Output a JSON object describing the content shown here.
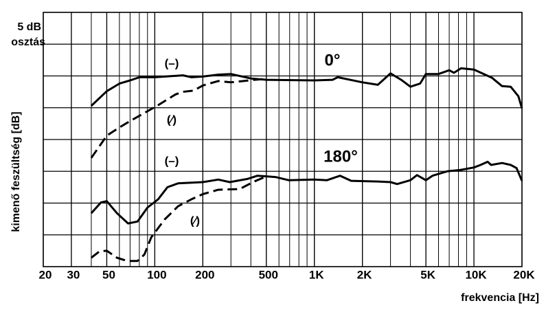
{
  "chart_data": {
    "type": "line",
    "x_label": "frekvencia [Hz]",
    "y_label": "kimenő feszültség [dB]",
    "y_scale_note": [
      "5 dB",
      "osztás"
    ],
    "xscale": "log",
    "xlim": [
      20,
      20000
    ],
    "xticks": [
      20,
      30,
      50,
      100,
      200,
      500,
      {
        "value": 1000,
        "label": "1K"
      },
      {
        "value": 2000,
        "label": "2K"
      },
      {
        "value": 5000,
        "label": "5K"
      },
      {
        "value": 10000,
        "label": "10K"
      },
      {
        "value": 20000,
        "label": "20K"
      }
    ],
    "ylim": [
      0,
      40
    ],
    "yticks": [
      0,
      5,
      10,
      15,
      20,
      25,
      30,
      35,
      40
    ],
    "grid": true,
    "series": [
      {
        "color": "#000000",
        "style": "solid",
        "x": [
          40,
          50,
          60,
          70,
          80,
          100,
          150,
          170,
          200,
          250,
          300,
          400,
          500,
          1000,
          1300,
          1400,
          2000,
          2500,
          3000,
          3500,
          4000,
          4600,
          5000,
          6000,
          7000,
          7500,
          8300,
          10000,
          13000,
          15000,
          17000,
          19000,
          20000
        ],
        "values": [
          25.3,
          27.6,
          28.8,
          29.3,
          29.8,
          29.8,
          30.1,
          29.8,
          29.9,
          30.2,
          30.3,
          29.6,
          29.4,
          29.3,
          29.4,
          29.8,
          29.0,
          28.6,
          30.4,
          29.4,
          28.3,
          28.8,
          30.3,
          30.3,
          30.9,
          30.5,
          31.2,
          31.0,
          29.7,
          28.4,
          28.3,
          26.8,
          24.9
        ]
      },
      {
        "color": "#000000",
        "style": "dashed",
        "x": [
          40,
          50,
          60,
          70,
          85,
          105,
          135,
          150,
          175,
          200,
          250,
          300,
          360,
          420,
          480
        ],
        "values": [
          17.1,
          20.6,
          21.9,
          22.9,
          24.1,
          25.4,
          27.1,
          27.5,
          27.7,
          28.5,
          29.2,
          29.0,
          29.2,
          29.4,
          29.5
        ]
      },
      {
        "color": "#000000",
        "style": "solid",
        "x": [
          40,
          46,
          50,
          58,
          68,
          78,
          90,
          105,
          120,
          140,
          200,
          250,
          295,
          380,
          440,
          570,
          690,
          1000,
          1200,
          1450,
          1700,
          2500,
          3000,
          3300,
          4000,
          4400,
          5000,
          5500,
          6800,
          8200,
          10000,
          11000,
          12200,
          12800,
          15000,
          17000,
          18500,
          20000
        ],
        "values": [
          8.4,
          10.1,
          10.3,
          8.4,
          6.8,
          7.1,
          9.3,
          10.6,
          12.5,
          13.1,
          13.3,
          13.7,
          13.3,
          13.8,
          14.3,
          14.1,
          13.6,
          13.7,
          13.6,
          14.3,
          13.5,
          13.4,
          13.3,
          13.0,
          13.6,
          14.4,
          13.6,
          14.3,
          15.0,
          15.2,
          15.6,
          16.0,
          16.5,
          16.0,
          16.3,
          16.0,
          15.5,
          13.5
        ]
      },
      {
        "color": "#000000",
        "style": "dashed",
        "x": [
          40,
          45,
          50,
          58,
          67,
          78,
          86,
          95,
          115,
          140,
          170,
          200,
          250,
          340,
          420,
          490
        ],
        "values": [
          1.4,
          2.4,
          2.5,
          1.4,
          0.9,
          0.9,
          1.9,
          4.6,
          7.4,
          9.5,
          10.6,
          11.4,
          12.1,
          12.2,
          13.4,
          14.1
        ]
      }
    ],
    "annotations": [
      "(–)",
      "(⁄)",
      "0°",
      "(–)",
      "(⁄)",
      "180°"
    ]
  }
}
